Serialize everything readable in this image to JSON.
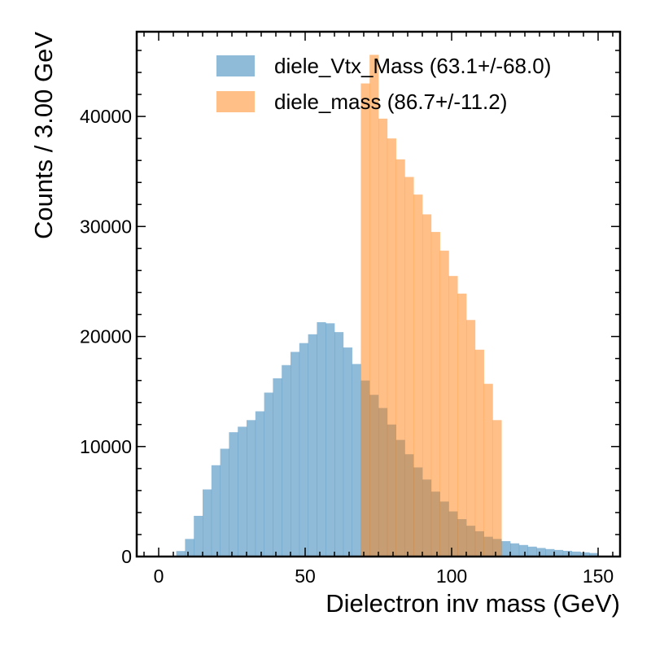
{
  "chart_data": {
    "type": "bar",
    "xlabel": "Dielectron inv mass (GeV)",
    "ylabel": "Counts / 3.00 GeV",
    "xlim": [
      -7.5,
      157.5
    ],
    "ylim": [
      0,
      47700
    ],
    "bin_width": 3.0,
    "x_ticks": [
      0,
      50,
      100,
      150
    ],
    "y_ticks": [
      0,
      10000,
      20000,
      30000,
      40000
    ],
    "x_tick_labels": [
      "0",
      "50",
      "100",
      "150"
    ],
    "y_tick_labels": [
      "0",
      "10000",
      "20000",
      "30000",
      "40000"
    ],
    "legend_position": "top-right",
    "grid": false,
    "series": [
      {
        "name": "diele_Vtx_Mass (63.1+/-68.0)",
        "color": "#1f77b4",
        "opacity": 0.5,
        "bin_edges_start": 0,
        "values": [
          0,
          0,
          500,
          1600,
          3700,
          6100,
          8300,
          9800,
          11300,
          11800,
          12400,
          13200,
          14900,
          16200,
          17400,
          18600,
          19400,
          20200,
          21300,
          21200,
          20400,
          19000,
          17500,
          16000,
          14700,
          13500,
          12000,
          10600,
          9300,
          8100,
          7000,
          5900,
          5000,
          4100,
          3400,
          2800,
          2300,
          1800,
          1600,
          1400,
          1200,
          1050,
          900,
          780,
          680,
          600,
          520,
          450,
          380,
          320
        ]
      },
      {
        "name": "diele_mass (86.7+/-11.2)",
        "color": "#ff7f0e",
        "opacity": 0.5,
        "bin_edges_start": 69,
        "values": [
          43000,
          45600,
          39800,
          38000,
          36100,
          34500,
          32900,
          31100,
          29500,
          27800,
          25500,
          23900,
          21500,
          18800,
          15700,
          12400
        ]
      }
    ]
  }
}
